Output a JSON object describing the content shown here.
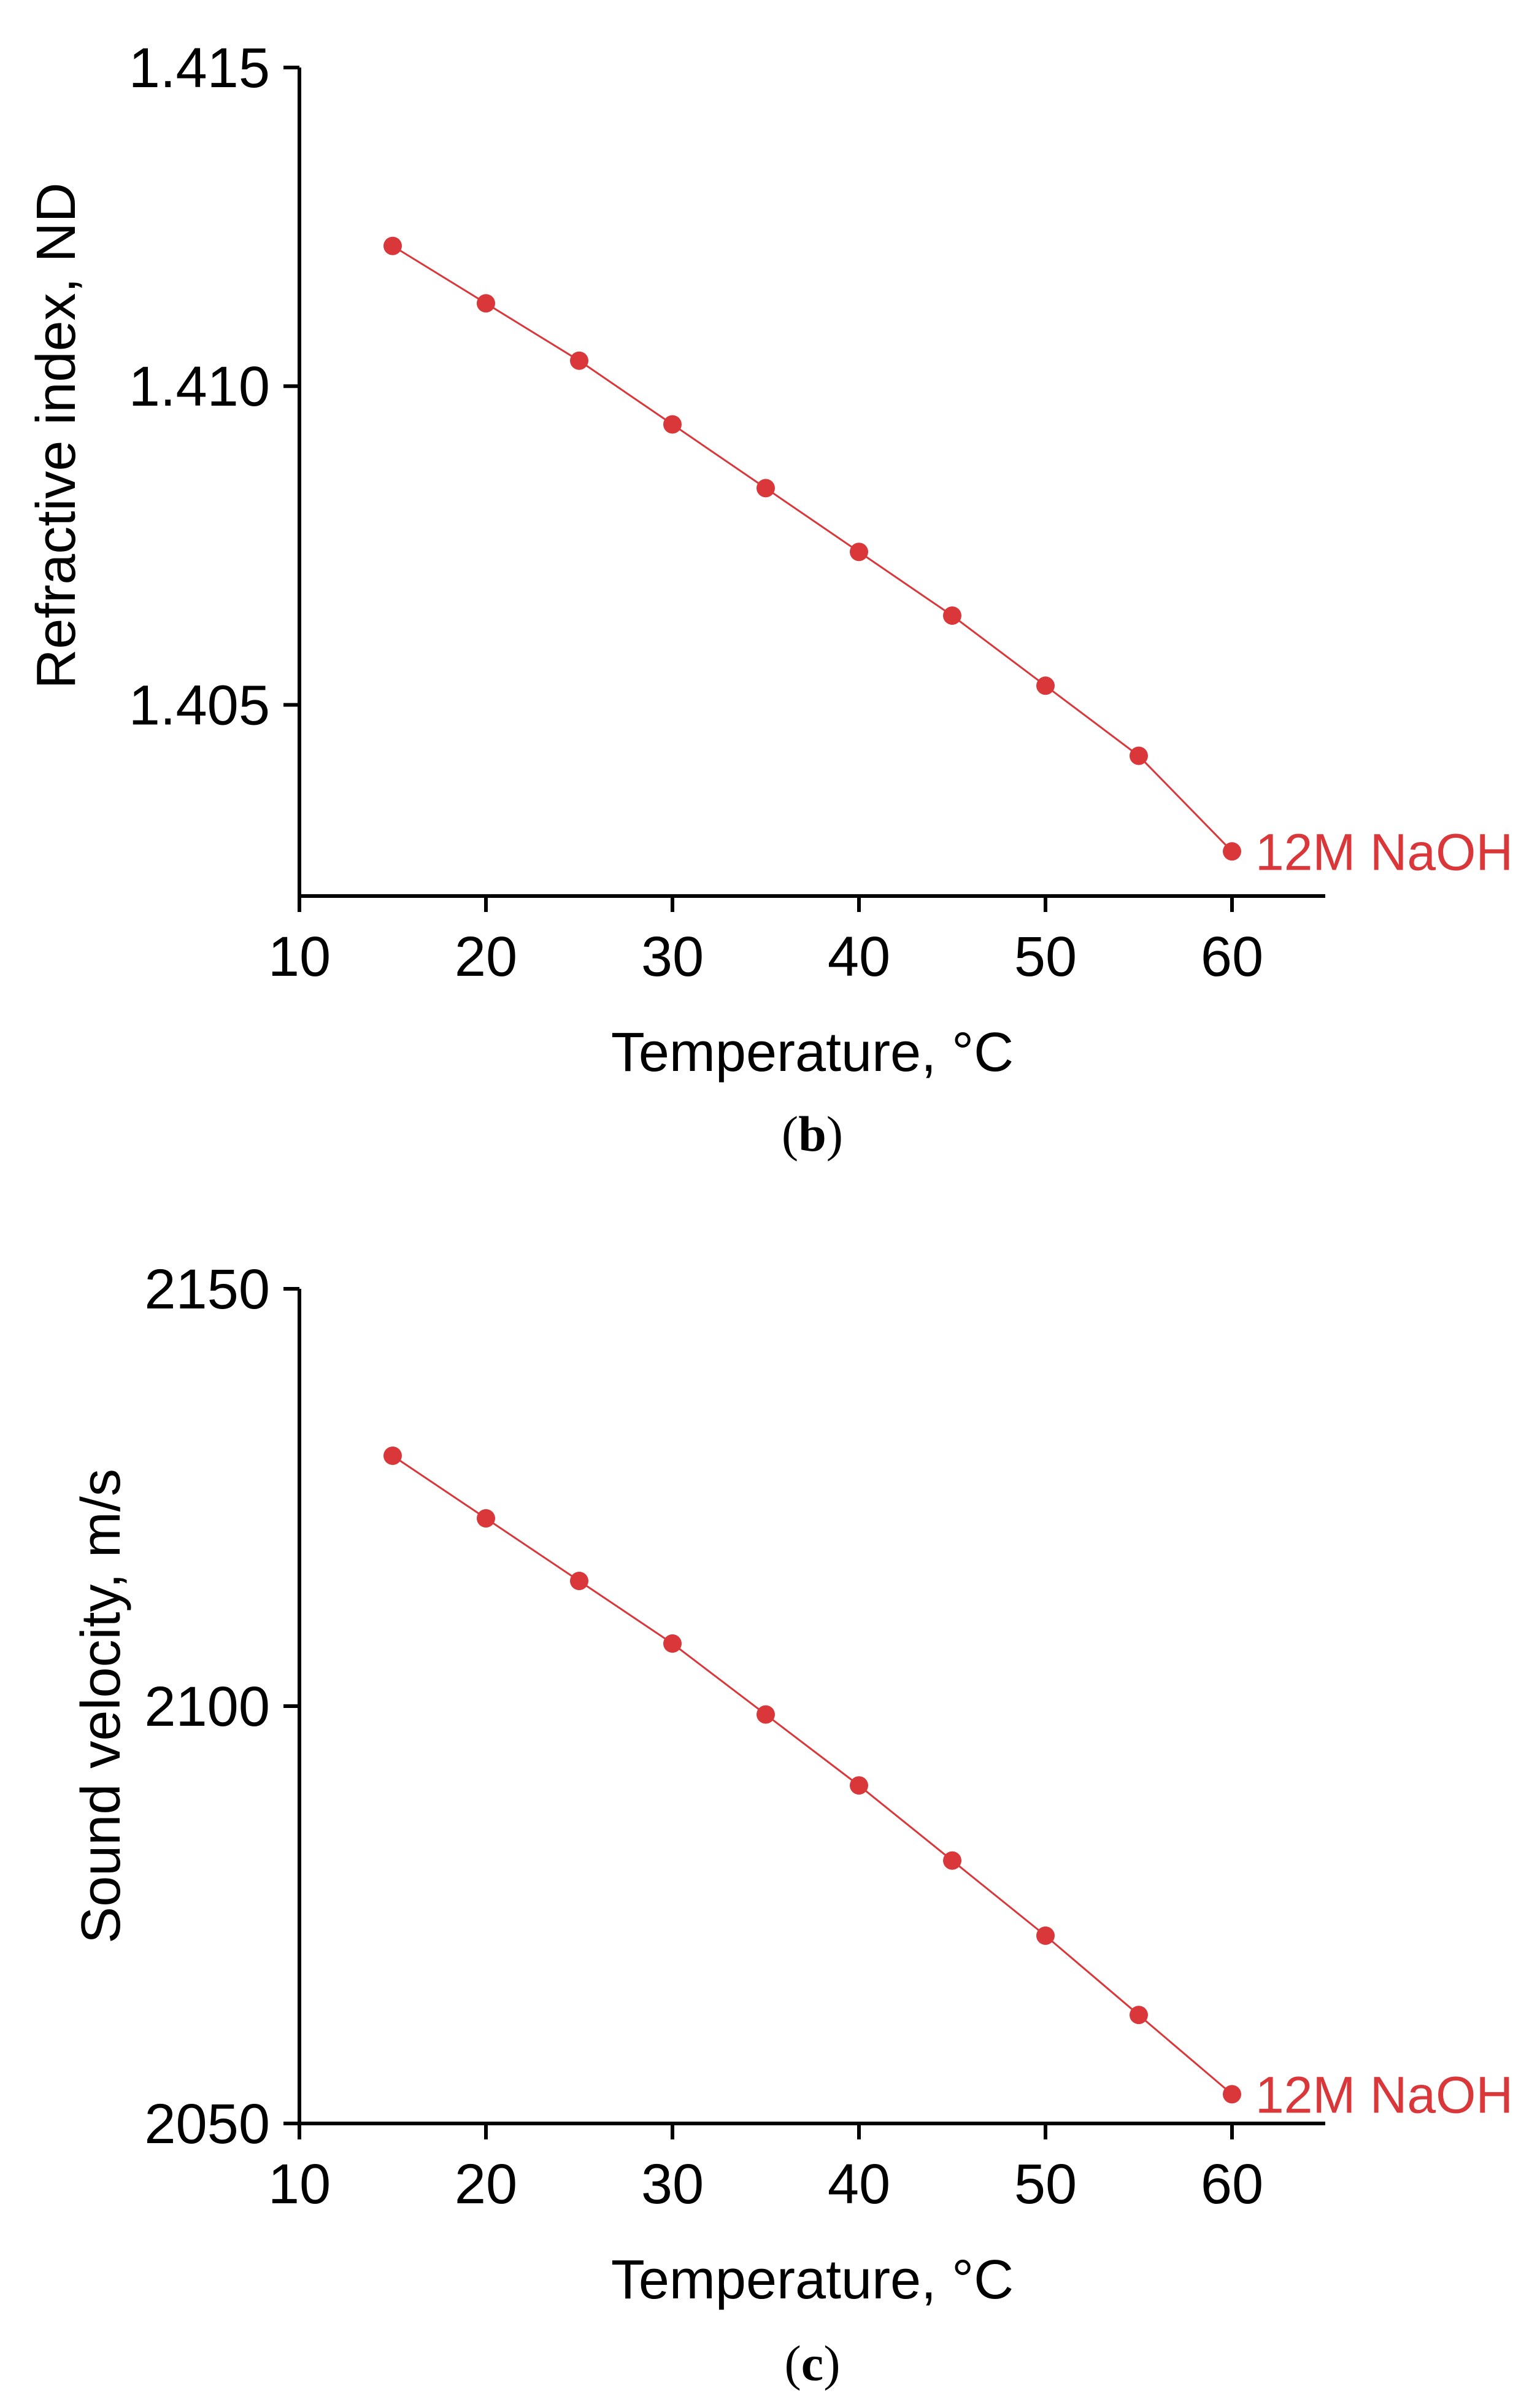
{
  "colors": {
    "series": "#d9373a",
    "axis": "#000000"
  },
  "chart_data": [
    {
      "type": "line",
      "panel_label": "b",
      "xlabel": "Temperature, °C",
      "ylabel": "Refractive index, ND",
      "xlim": [
        10,
        65
      ],
      "ylim": [
        1.402,
        1.415
      ],
      "xticks": [
        10,
        20,
        30,
        40,
        50,
        60
      ],
      "xtick_labels": [
        "10",
        "20",
        "30",
        "40",
        "50",
        "60"
      ],
      "yticks": [
        1.405,
        1.41,
        1.415
      ],
      "ytick_labels": [
        "1.405",
        "1.410",
        "1.415"
      ],
      "grid": false,
      "series": [
        {
          "name": "12M NaOH",
          "x": [
            15,
            20,
            25,
            30,
            35,
            40,
            45,
            50,
            55,
            60
          ],
          "y": [
            1.4122,
            1.4113,
            1.4104,
            1.4094,
            1.4084,
            1.4074,
            1.4064,
            1.4053,
            1.4042,
            1.4027
          ]
        }
      ]
    },
    {
      "type": "line",
      "panel_label": "c",
      "xlabel": "Temperature, °C",
      "ylabel": "Sound velocity, m/s",
      "xlim": [
        10,
        65
      ],
      "ylim": [
        2050,
        2150
      ],
      "xticks": [
        10,
        20,
        30,
        40,
        50,
        60
      ],
      "xtick_labels": [
        "10",
        "20",
        "30",
        "40",
        "50",
        "60"
      ],
      "yticks": [
        2050,
        2100,
        2150
      ],
      "ytick_labels": [
        "2050",
        "2100",
        "2150"
      ],
      "grid": false,
      "series": [
        {
          "name": "12M NaOH",
          "x": [
            15,
            20,
            25,
            30,
            35,
            40,
            45,
            50,
            55,
            60
          ],
          "y": [
            2130,
            2122.5,
            2115,
            2107.5,
            2099,
            2090.5,
            2081.5,
            2072.5,
            2063,
            2053.5
          ]
        }
      ]
    }
  ]
}
